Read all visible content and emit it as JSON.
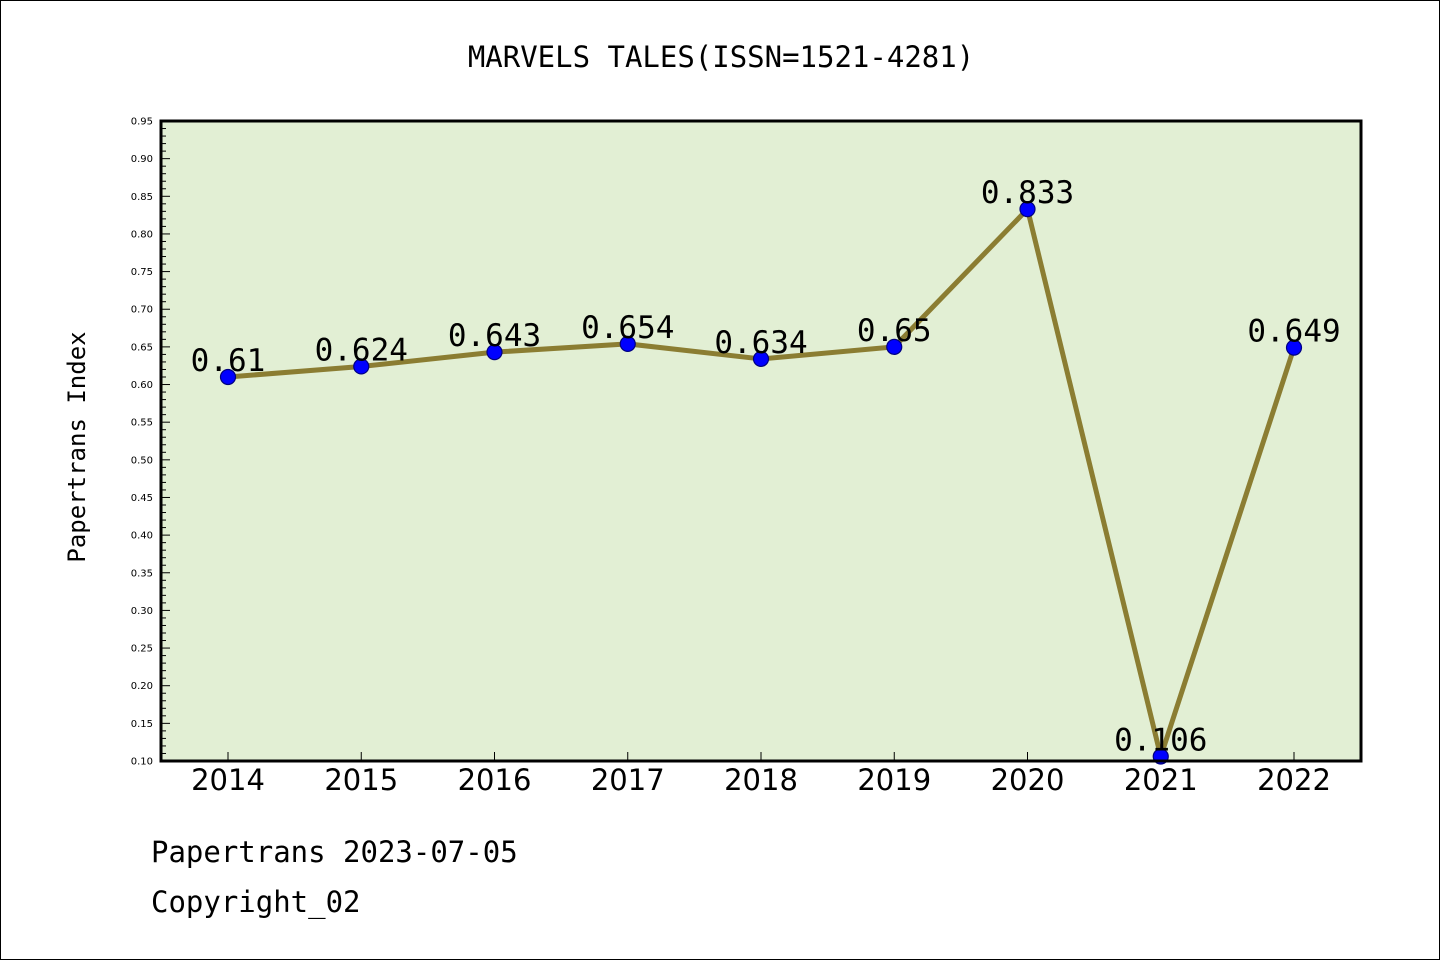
{
  "chart_data": {
    "type": "line",
    "title": "MARVELS TALES(ISSN=1521-4281)",
    "xlabel": "",
    "ylabel": "Papertrans Index",
    "categories": [
      "2014",
      "2015",
      "2016",
      "2017",
      "2018",
      "2019",
      "2020",
      "2021",
      "2022"
    ],
    "series": [
      {
        "values": [
          0.61,
          0.624,
          0.643,
          0.654,
          0.634,
          0.65,
          0.833,
          0.106,
          0.649
        ],
        "labels": [
          "0.61",
          "0.624",
          "0.643",
          "0.654",
          "0.634",
          "0.65",
          "0.833",
          "0.106",
          "0.649"
        ]
      }
    ],
    "ylim": [
      0.1,
      0.95
    ],
    "yticks": [
      "0.10",
      "0.15",
      "0.20",
      "0.25",
      "0.30",
      "0.35",
      "0.40",
      "0.45",
      "0.50",
      "0.55",
      "0.60",
      "0.65",
      "0.70",
      "0.75",
      "0.80",
      "0.85",
      "0.90",
      "0.95"
    ],
    "grid": false,
    "legend": "none",
    "colors": {
      "plot_background": "#e2efd4",
      "line": "#8b7d32",
      "marker_fill": "#0000ff",
      "marker_edge": "#000080",
      "axis": "#000000"
    }
  },
  "footer": {
    "line1": "Papertrans 2023-07-05",
    "line2": "Copyright_02"
  }
}
